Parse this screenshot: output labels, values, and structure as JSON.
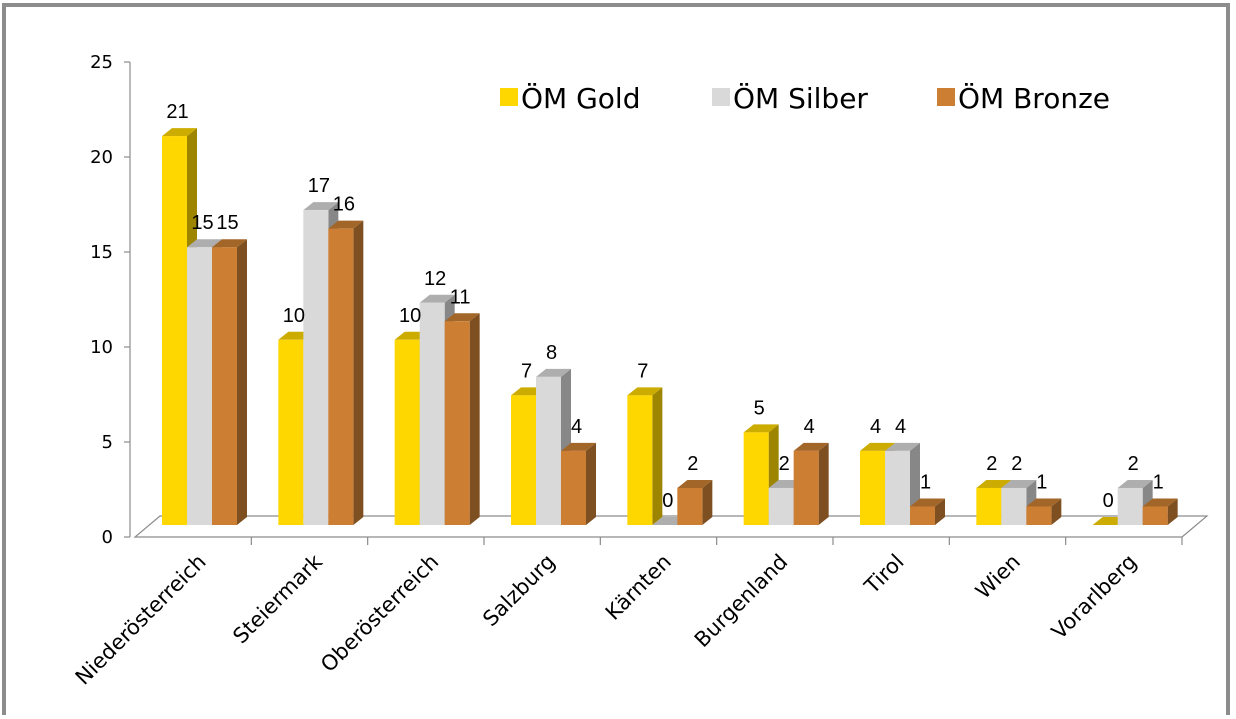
{
  "chart_data": {
    "type": "bar",
    "title": "",
    "xlabel": "",
    "ylabel": "",
    "ylim": [
      0,
      25
    ],
    "yticks": [
      0,
      5,
      10,
      15,
      20,
      25
    ],
    "grid": false,
    "legend_position": "top-right",
    "categories": [
      "Niederösterreich",
      "Steiermark",
      "Oberösterreich",
      "Salzburg",
      "Kärnten",
      "Burgenland",
      "Tirol",
      "Wien",
      "Vorarlberg"
    ],
    "series": [
      {
        "name": "ÖM Gold",
        "color": "#FFD700",
        "values": [
          21,
          10,
          10,
          7,
          7,
          5,
          4,
          2,
          0
        ]
      },
      {
        "name": "ÖM Silber",
        "color": "#D9D9D9",
        "values": [
          15,
          17,
          12,
          8,
          0,
          2,
          4,
          2,
          2
        ]
      },
      {
        "name": "ÖM Bronze",
        "color": "#CC7F33",
        "values": [
          15,
          16,
          11,
          4,
          2,
          4,
          1,
          1,
          1
        ]
      }
    ]
  }
}
